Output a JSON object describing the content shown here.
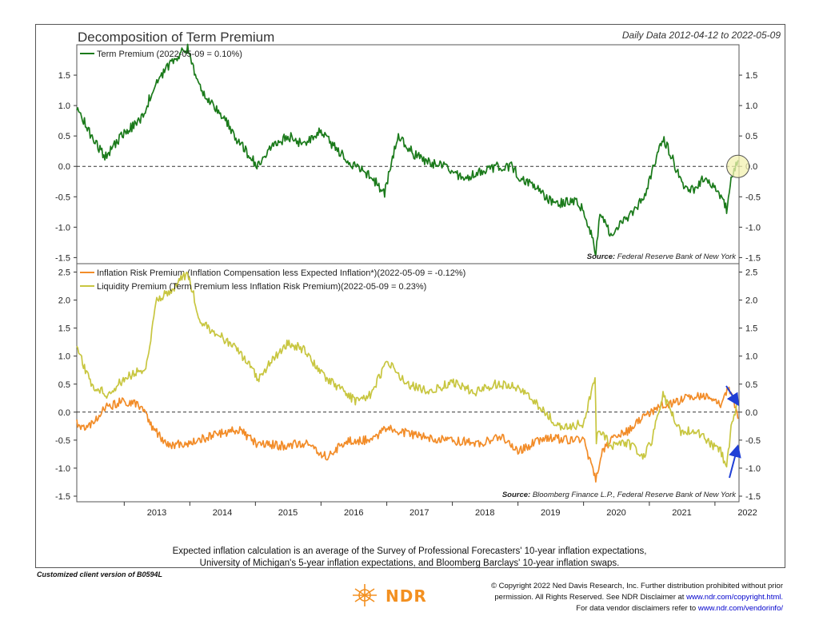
{
  "header": {
    "title": "Decomposition of Term Premium",
    "date_range": "Daily Data 2012-04-12 to 2022-05-09"
  },
  "footer": {
    "note_line1": "Expected inflation calculation is an average of the Survey of Professional Forecasters' 10-year inflation expectations,",
    "note_line2": "University of Michigan's 5-year inflation expectations, and Bloomberg Barclays' 10-year inflation swaps.",
    "client_version": "Customized client version of B0594L",
    "copyright_line1": "© Copyright 2022 Ned Davis Research, Inc. Further distribution prohibited without prior",
    "copyright_line2_text": "permission. All Rights Reserved. See NDR Disclaimer at",
    "copyright_line2_link": "www.ndr.com/copyright.html.",
    "copyright_line3_text": "For data vendor disclaimers refer to",
    "copyright_line3_link": "www.ndr.com/vendorinfo/",
    "logo_text": "NDR"
  },
  "colors": {
    "term_premium": "#1a7a1a",
    "inflation_risk": "#f28c28",
    "liquidity": "#c8c640",
    "arrow": "#1f3fd6",
    "highlight_circle": "#f3f2b0"
  },
  "chart_data": [
    {
      "type": "line",
      "panel": "top",
      "x_axis": "date",
      "ylim": [
        -1.6,
        2.0
      ],
      "yticks": [
        -1.5,
        -1.0,
        -0.5,
        0.0,
        0.5,
        1.0,
        1.5
      ],
      "ytick_labels": [
        "-1.5",
        "-1.0",
        "-0.5",
        "0.0",
        "0.5",
        "1.0",
        "1.5"
      ],
      "reference_line": 0.0,
      "source": "Federal Reserve Bank of New York",
      "source_label": "Source:",
      "highlight": {
        "x": "2022-05-09",
        "y": 0.0
      },
      "series": [
        {
          "name": "Term Premium (2022-05-09 = 0.10%)",
          "color": "#1a7a1a",
          "x": [
            "2012-04-12",
            "2012-07-01",
            "2012-09-15",
            "2013-01-01",
            "2013-04-01",
            "2013-07-01",
            "2013-10-01",
            "2013-12-20",
            "2014-02-01",
            "2014-04-01",
            "2014-07-01",
            "2014-10-01",
            "2015-01-15",
            "2015-04-01",
            "2015-07-01",
            "2015-10-01",
            "2016-01-01",
            "2016-04-01",
            "2016-07-10",
            "2016-10-01",
            "2016-12-20",
            "2017-03-01",
            "2017-06-01",
            "2017-09-01",
            "2017-12-01",
            "2018-03-01",
            "2018-06-01",
            "2018-09-01",
            "2018-12-01",
            "2019-01-15",
            "2019-04-01",
            "2019-06-15",
            "2019-08-25",
            "2019-11-01",
            "2020-01-01",
            "2020-03-09",
            "2020-04-01",
            "2020-06-01",
            "2020-08-01",
            "2020-10-01",
            "2020-12-01",
            "2021-01-15",
            "2021-03-18",
            "2021-05-01",
            "2021-07-01",
            "2021-09-01",
            "2021-11-01",
            "2022-01-01",
            "2022-02-15",
            "2022-03-07",
            "2022-04-01",
            "2022-05-09"
          ],
          "y": [
            1.0,
            0.5,
            0.15,
            0.55,
            0.75,
            1.4,
            1.75,
            1.95,
            1.5,
            1.1,
            0.85,
            0.4,
            0.0,
            0.3,
            0.5,
            0.35,
            0.6,
            0.25,
            0.0,
            -0.15,
            -0.45,
            0.5,
            0.2,
            0.05,
            0.0,
            -0.2,
            -0.1,
            0.0,
            0.0,
            -0.2,
            -0.3,
            -0.55,
            -0.6,
            -0.55,
            -0.7,
            -1.4,
            -0.8,
            -1.1,
            -0.95,
            -0.75,
            -0.5,
            -0.1,
            0.45,
            0.2,
            -0.3,
            -0.4,
            -0.2,
            -0.35,
            -0.55,
            -0.7,
            -0.2,
            0.1
          ]
        }
      ]
    },
    {
      "type": "line",
      "panel": "bottom",
      "x_axis": "date",
      "ylim": [
        -1.6,
        2.65
      ],
      "yticks": [
        -1.5,
        -1.0,
        -0.5,
        0.0,
        0.5,
        1.0,
        1.5,
        2.0,
        2.5
      ],
      "ytick_labels": [
        "-1.5",
        "-1.0",
        "-0.5",
        "0.0",
        "0.5",
        "1.0",
        "1.5",
        "2.0",
        "2.5"
      ],
      "reference_line": 0.0,
      "source": "Bloomberg Finance L.P., Federal Reserve Bank of New York",
      "source_label": "Source:",
      "xtick_labels": [
        "2013",
        "2014",
        "2015",
        "2016",
        "2017",
        "2018",
        "2019",
        "2020",
        "2021",
        "2022"
      ],
      "series": [
        {
          "name": "Inflation Risk Premium (Inflation Compensation less Expected Inflation*)(2022-05-09 = -0.12%)",
          "color": "#f28c28",
          "x": [
            "2012-04-12",
            "2012-06-01",
            "2012-10-01",
            "2013-01-01",
            "2013-04-01",
            "2013-06-15",
            "2013-09-01",
            "2014-01-01",
            "2014-06-01",
            "2014-10-01",
            "2015-01-01",
            "2015-06-01",
            "2015-10-01",
            "2016-02-01",
            "2016-06-01",
            "2016-10-01",
            "2017-01-01",
            "2017-06-01",
            "2017-12-01",
            "2018-06-01",
            "2018-10-01",
            "2019-01-01",
            "2019-06-01",
            "2019-10-01",
            "2020-01-01",
            "2020-03-09",
            "2020-04-15",
            "2020-06-01",
            "2020-09-01",
            "2020-12-01",
            "2021-03-01",
            "2021-06-01",
            "2021-09-01",
            "2021-12-01",
            "2022-02-01",
            "2022-03-15",
            "2022-04-15",
            "2022-05-09"
          ],
          "y": [
            -0.2,
            -0.3,
            0.1,
            0.2,
            0.1,
            -0.3,
            -0.6,
            -0.55,
            -0.4,
            -0.3,
            -0.55,
            -0.6,
            -0.55,
            -0.8,
            -0.5,
            -0.5,
            -0.3,
            -0.4,
            -0.5,
            -0.55,
            -0.45,
            -0.7,
            -0.45,
            -0.5,
            -0.5,
            -1.2,
            -0.7,
            -0.5,
            -0.35,
            -0.1,
            0.1,
            0.2,
            0.3,
            0.25,
            0.15,
            0.4,
            0.2,
            -0.12
          ]
        },
        {
          "name": "Liquidity Premium (Term Premium less Inflation Risk Premium)(2022-05-09 = 0.23%)",
          "color": "#c8c640",
          "x": [
            "2012-04-12",
            "2012-07-01",
            "2012-10-01",
            "2013-01-01",
            "2013-05-01",
            "2013-07-01",
            "2013-10-01",
            "2013-12-20",
            "2014-03-01",
            "2014-06-01",
            "2014-10-01",
            "2015-01-15",
            "2015-04-01",
            "2015-07-01",
            "2015-10-01",
            "2016-01-01",
            "2016-04-01",
            "2016-07-10",
            "2016-10-01",
            "2017-01-01",
            "2017-05-01",
            "2017-09-01",
            "2018-01-01",
            "2018-05-01",
            "2018-09-01",
            "2019-01-01",
            "2019-06-01",
            "2019-09-01",
            "2020-01-01",
            "2020-03-05",
            "2020-03-12",
            "2020-04-01",
            "2020-06-01",
            "2020-09-01",
            "2020-12-01",
            "2021-01-15",
            "2021-03-18",
            "2021-05-01",
            "2021-07-01",
            "2021-09-01",
            "2021-12-01",
            "2022-02-01",
            "2022-03-07",
            "2022-04-01",
            "2022-05-09"
          ],
          "y": [
            1.15,
            0.5,
            0.3,
            0.6,
            0.8,
            2.0,
            2.2,
            2.5,
            1.6,
            1.4,
            1.1,
            0.6,
            0.9,
            1.25,
            1.1,
            0.7,
            0.45,
            0.2,
            0.3,
            0.9,
            0.5,
            0.35,
            0.55,
            0.35,
            0.5,
            0.45,
            0.0,
            -0.3,
            -0.2,
            0.65,
            -0.5,
            -0.3,
            -0.6,
            -0.55,
            -0.8,
            -0.5,
            0.3,
            0.0,
            -0.4,
            -0.3,
            -0.55,
            -0.7,
            -1.0,
            -0.3,
            0.23
          ]
        }
      ]
    }
  ]
}
